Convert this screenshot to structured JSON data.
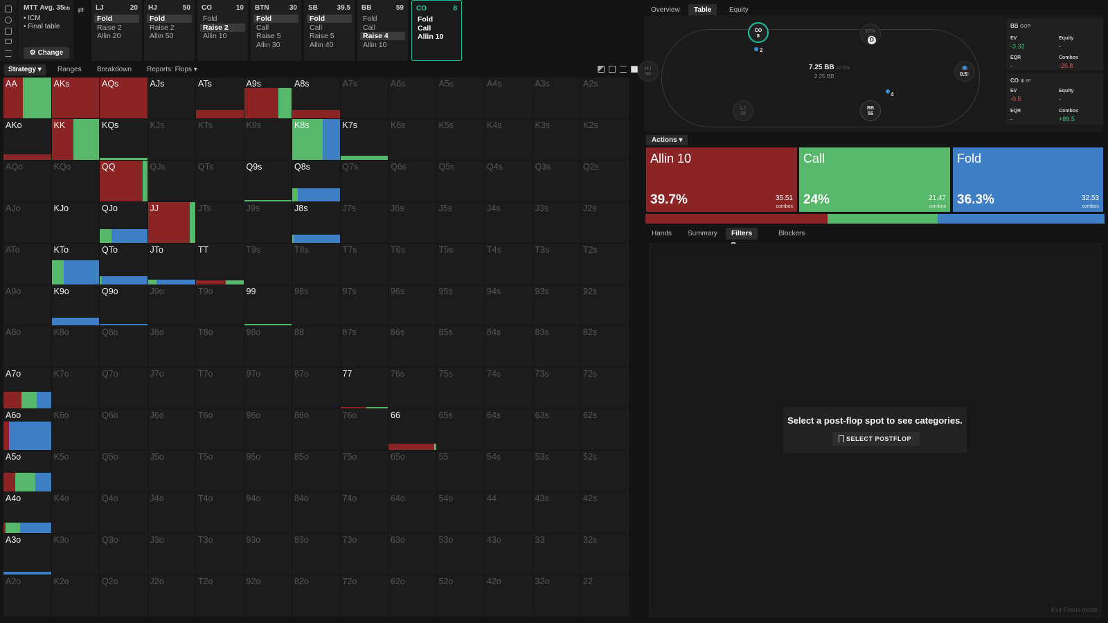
{
  "info": {
    "mode": "MTT",
    "avg": "Avg. 35",
    "avg_unit": "bb",
    "items": [
      "ICM",
      "Final table"
    ],
    "change_label": "Change"
  },
  "positions": [
    {
      "name": "LJ",
      "stack": "20",
      "actions": [
        "Fold",
        "Raise 2",
        "Allin 20"
      ],
      "selected": 0,
      "active": false
    },
    {
      "name": "HJ",
      "stack": "50",
      "actions": [
        "Fold",
        "Raise 2",
        "Allin 50"
      ],
      "selected": 0,
      "active": false
    },
    {
      "name": "CO",
      "stack": "10",
      "actions": [
        "Fold",
        "Raise 2",
        "Allin 10"
      ],
      "selected": 1,
      "active": false
    },
    {
      "name": "BTN",
      "stack": "30",
      "actions": [
        "Fold",
        "Call",
        "Raise 5",
        "Allin 30"
      ],
      "selected": 0,
      "active": false
    },
    {
      "name": "SB",
      "stack": "39.5",
      "actions": [
        "Fold",
        "Call",
        "Raise 5",
        "Allin 40"
      ],
      "selected": 0,
      "active": false
    },
    {
      "name": "BB",
      "stack": "59",
      "actions": [
        "Fold",
        "Call",
        "Raise 4",
        "Allin 10"
      ],
      "selected": 2,
      "active": false
    },
    {
      "name": "CO",
      "stack": "8",
      "actions": [
        "Fold",
        "Call",
        "Allin 10"
      ],
      "selected": -1,
      "active": true
    }
  ],
  "grid_tabs": {
    "strategy": "Strategy",
    "ranges": "Ranges",
    "breakdown": "Breakdown",
    "reports": "Reports: Flops"
  },
  "grid_labels": [
    [
      "AA",
      "AKs",
      "AQs",
      "AJs",
      "ATs",
      "A9s",
      "A8s",
      "A7s",
      "A6s",
      "A5s",
      "A4s",
      "A3s",
      "A2s"
    ],
    [
      "AKo",
      "KK",
      "KQs",
      "KJs",
      "KTs",
      "K9s",
      "K8s",
      "K7s",
      "K6s",
      "K5s",
      "K4s",
      "K3s",
      "K2s"
    ],
    [
      "AQo",
      "KQo",
      "QQ",
      "QJs",
      "QTs",
      "Q9s",
      "Q8s",
      "Q7s",
      "Q6s",
      "Q5s",
      "Q4s",
      "Q3s",
      "Q2s"
    ],
    [
      "AJo",
      "KJo",
      "QJo",
      "JJ",
      "JTs",
      "J9s",
      "J8s",
      "J7s",
      "J6s",
      "J5s",
      "J4s",
      "J3s",
      "J2s"
    ],
    [
      "ATo",
      "KTo",
      "QTo",
      "JTo",
      "TT",
      "T9s",
      "T8s",
      "T7s",
      "T6s",
      "T5s",
      "T4s",
      "T3s",
      "T2s"
    ],
    [
      "A9o",
      "K9o",
      "Q9o",
      "J9o",
      "T9o",
      "99",
      "98s",
      "97s",
      "96s",
      "95s",
      "94s",
      "93s",
      "92s"
    ],
    [
      "A8o",
      "K8o",
      "Q8o",
      "J8o",
      "T8o",
      "98o",
      "88",
      "87s",
      "86s",
      "85s",
      "84s",
      "83s",
      "82s"
    ],
    [
      "A7o",
      "K7o",
      "Q7o",
      "J7o",
      "T7o",
      "97o",
      "87o",
      "77",
      "76s",
      "75s",
      "74s",
      "73s",
      "72s"
    ],
    [
      "A6o",
      "K6o",
      "Q6o",
      "J6o",
      "T6o",
      "96o",
      "86o",
      "76o",
      "66",
      "65s",
      "64s",
      "63s",
      "62s"
    ],
    [
      "A5o",
      "K5o",
      "Q5o",
      "J5o",
      "T5o",
      "95o",
      "85o",
      "75o",
      "65o",
      "55",
      "54s",
      "53s",
      "52s"
    ],
    [
      "A4o",
      "K4o",
      "Q4o",
      "J4o",
      "T4o",
      "94o",
      "84o",
      "74o",
      "64o",
      "54o",
      "44",
      "43s",
      "42s"
    ],
    [
      "A3o",
      "K3o",
      "Q3o",
      "J3o",
      "T3o",
      "93o",
      "83o",
      "73o",
      "63o",
      "53o",
      "43o",
      "33",
      "32s"
    ],
    [
      "A2o",
      "K2o",
      "Q2o",
      "J2o",
      "T2o",
      "92o",
      "82o",
      "72o",
      "62o",
      "52o",
      "42o",
      "32o",
      "22"
    ]
  ],
  "hand_strategy": {
    "AA": {
      "freq": 1.0,
      "allin": 0.4,
      "call": 0.6,
      "fold": 0.0
    },
    "AKs": {
      "freq": 1.0,
      "allin": 1.0,
      "call": 0.0,
      "fold": 0.0
    },
    "AQs": {
      "freq": 1.0,
      "allin": 1.0,
      "call": 0.0,
      "fold": 0.0
    },
    "ATs": {
      "freq": 0.2,
      "allin": 1.0,
      "call": 0.0,
      "fold": 0.0
    },
    "A9s": {
      "freq": 0.75,
      "allin": 0.72,
      "call": 0.28,
      "fold": 0.0
    },
    "A8s": {
      "freq": 0.2,
      "allin": 1.0,
      "call": 0.0,
      "fold": 0.0
    },
    "AKo": {
      "freq": 0.13,
      "allin": 1.0,
      "call": 0.0,
      "fold": 0.0
    },
    "KK": {
      "freq": 1.0,
      "allin": 0.45,
      "call": 0.55,
      "fold": 0.0
    },
    "KQs": {
      "freq": 0.05,
      "allin": 0.0,
      "call": 1.0,
      "fold": 0.0
    },
    "K8s": {
      "freq": 1.0,
      "allin": 0.0,
      "call": 0.64,
      "fold": 0.36
    },
    "K7s": {
      "freq": 0.1,
      "allin": 0.0,
      "call": 1.0,
      "fold": 0.0
    },
    "QQ": {
      "freq": 1.0,
      "allin": 0.9,
      "call": 0.1,
      "fold": 0.0
    },
    "Q9s": {
      "freq": 0.03,
      "allin": 0.0,
      "call": 1.0,
      "fold": 0.0
    },
    "Q8s": {
      "freq": 0.33,
      "allin": 0.0,
      "call": 0.12,
      "fold": 0.88
    },
    "QJo": {
      "freq": 0.34,
      "allin": 0.0,
      "call": 0.25,
      "fold": 0.75
    },
    "JJ": {
      "freq": 1.0,
      "allin": 0.88,
      "call": 0.12,
      "fold": 0.0
    },
    "J8s": {
      "freq": 0.2,
      "allin": 0.0,
      "call": 0.03,
      "fold": 0.97
    },
    "KTo": {
      "freq": 0.6,
      "allin": 0.0,
      "call": 0.25,
      "fold": 0.75
    },
    "QTo": {
      "freq": 0.2,
      "allin": 0.0,
      "call": 0.05,
      "fold": 0.95
    },
    "JTo": {
      "freq": 0.12,
      "allin": 0.0,
      "call": 0.18,
      "fold": 0.82
    },
    "TT": {
      "freq": 0.1,
      "allin": 0.62,
      "call": 0.38,
      "fold": 0.0
    },
    "K9o": {
      "freq": 0.2,
      "allin": 0.0,
      "call": 0.0,
      "fold": 1.0
    },
    "Q9o": {
      "freq": 0.05,
      "allin": 0.0,
      "call": 0.0,
      "fold": 1.0
    },
    "99": {
      "freq": 0.05,
      "allin": 0.0,
      "call": 1.0,
      "fold": 0.0
    },
    "A7o": {
      "freq": 0.4,
      "allin": 0.38,
      "call": 0.32,
      "fold": 0.3
    },
    "77": {
      "freq": 0.03,
      "allin": 0.55,
      "call": 0.45,
      "fold": 0.0
    },
    "A6o": {
      "freq": 0.7,
      "allin": 0.12,
      "call": 0.0,
      "fold": 0.88
    },
    "66": {
      "freq": 0.15,
      "allin": 0.95,
      "call": 0.05,
      "fold": 0.0
    },
    "A5o": {
      "freq": 0.45,
      "allin": 0.25,
      "call": 0.42,
      "fold": 0.33
    },
    "A4o": {
      "freq": 0.25,
      "allin": 0.05,
      "call": 0.3,
      "fold": 0.65
    },
    "A3o": {
      "freq": 0.06,
      "allin": 0.0,
      "call": 0.0,
      "fold": 1.0
    }
  },
  "right_tabs": {
    "overview": "Overview",
    "table": "Table",
    "equity": "Equity chart"
  },
  "table": {
    "seats": {
      "co": {
        "pos": "CO",
        "stack": "8"
      },
      "btn": {
        "pos": "BTN",
        "stack": "30"
      },
      "sb": {
        "pos": "SB",
        "stack": "39.5"
      },
      "bb": {
        "pos": "BB",
        "stack": "56"
      },
      "lj": {
        "pos": "LJ",
        "stack": "20"
      },
      "hj": {
        "pos": "HJ",
        "stack": "50"
      }
    },
    "dealer": "D",
    "chips": {
      "co": "2",
      "sb": "0.5",
      "bb": "4"
    },
    "pot": "7.25 BB",
    "pot_pct": "10.5%",
    "pot_sub": "2.25 BB"
  },
  "stats": {
    "bb": {
      "name": "BB",
      "tag": "OOP",
      "ev_label": "EV",
      "ev": "-3.32",
      "equity_label": "Equity",
      "equity": "-",
      "eqr_label": "EQR",
      "eqr": "-",
      "combos_label": "Combos",
      "combos": "-26.8"
    },
    "co": {
      "name": "CO",
      "tag": "IP",
      "ev_label": "EV",
      "ev": "-0.5",
      "equity_label": "Equity",
      "equity": "-",
      "eqr_label": "EQR",
      "eqr": "-",
      "combos_label": "Combos",
      "combos": "+89.5"
    }
  },
  "actions_label": "Actions",
  "action_summary": [
    {
      "name": "Allin 10",
      "pct": "39.7%",
      "combos": "35.51",
      "combos_label": "combos",
      "color": "#8b2424",
      "share": 0.397
    },
    {
      "name": "Call",
      "pct": "24%",
      "combos": "21.47",
      "combos_label": "combos",
      "color": "#57b76a",
      "share": 0.24
    },
    {
      "name": "Fold",
      "pct": "36.3%",
      "combos": "32.53",
      "combos_label": "combos",
      "color": "#3d7ec4",
      "share": 0.363
    }
  ],
  "bottom_tabs": {
    "hands": "Hands",
    "summary": "Summary",
    "filters": "Filters",
    "blockers": "Blockers"
  },
  "empty_panel": {
    "message": "Select a post-flop spot to see categories.",
    "button": "SELECT POSTFLOP"
  },
  "exit_focus": "Exit Focus mode",
  "colors": {
    "allin": "#8b2424",
    "call": "#57b76a",
    "fold": "#3d7ec4",
    "accent": "#1dbf9f"
  }
}
